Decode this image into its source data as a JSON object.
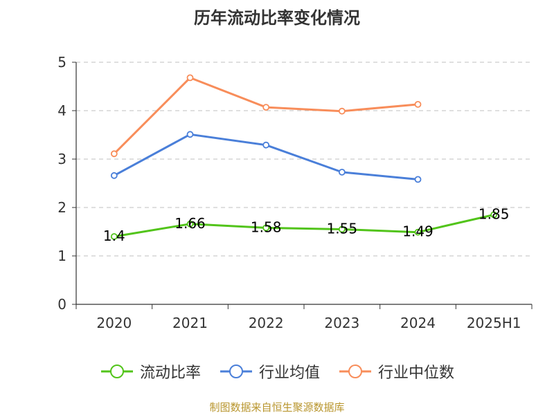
{
  "title": "历年流动比率变化情况",
  "source": "制图数据来自恒生聚源数据库",
  "chart_data": {
    "type": "line",
    "categories": [
      "2020",
      "2021",
      "2022",
      "2023",
      "2024",
      "2025H1"
    ],
    "ylim": [
      0,
      5
    ],
    "yticks": [
      "0",
      "1",
      "2",
      "3",
      "4",
      "5"
    ],
    "grid": true,
    "legend_position": "bottom",
    "series": [
      {
        "name": "流动比率",
        "color": "#52c41a",
        "values": [
          1.4,
          1.66,
          1.58,
          1.55,
          1.49,
          1.85
        ],
        "labels": [
          "1.4",
          "1.66",
          "1.58",
          "1.55",
          "1.49",
          "1.85"
        ]
      },
      {
        "name": "行业均值",
        "color": "#4a7fd9",
        "values": [
          2.66,
          3.51,
          3.29,
          2.73,
          2.58,
          null
        ]
      },
      {
        "name": "行业中位数",
        "color": "#f88d5a",
        "values": [
          3.11,
          4.68,
          4.07,
          3.99,
          4.13,
          null
        ]
      }
    ]
  }
}
